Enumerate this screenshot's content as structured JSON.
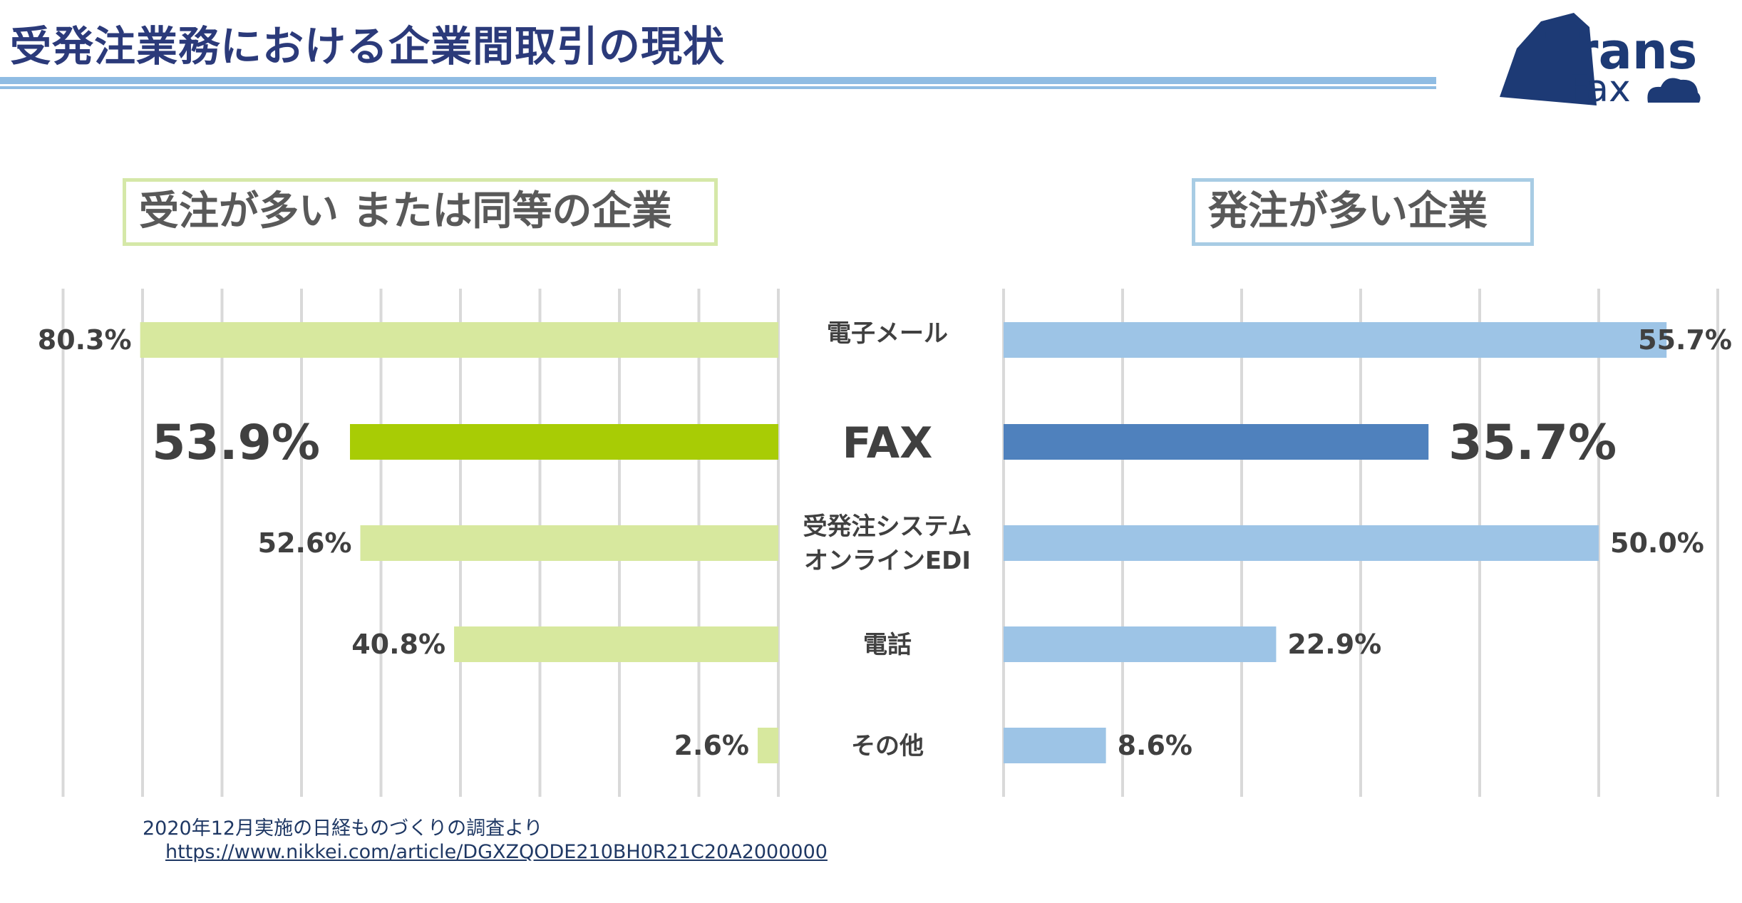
{
  "title": "受発注業務における企業間取引の現状",
  "logo": {
    "line1": "Trans",
    "line2": "Fax"
  },
  "panels": {
    "left_title": "受注が多い または同等の企業",
    "right_title": "発注が多い企業"
  },
  "chart_data": [
    {
      "type": "bar",
      "orientation": "horizontal",
      "direction": "right-to-left",
      "title": "受注が多い または同等の企業",
      "categories": [
        "電子メール",
        "FAX",
        "受発注システム オンラインEDI",
        "電話",
        "その他"
      ],
      "values": [
        80.3,
        53.9,
        52.6,
        40.8,
        2.6
      ],
      "labels": [
        "80.3%",
        "53.9%",
        "52.6%",
        "40.8%",
        "2.6%"
      ],
      "highlight_index": 1,
      "xlim": [
        0,
        90
      ],
      "grid": true,
      "colors": {
        "bar": "#d7e89e",
        "highlight": "#a8cc05"
      }
    },
    {
      "type": "bar",
      "orientation": "horizontal",
      "direction": "left-to-right",
      "title": "発注が多い企業",
      "categories": [
        "電子メール",
        "FAX",
        "受発注システム オンラインEDI",
        "電話",
        "その他"
      ],
      "values": [
        55.7,
        35.7,
        50.0,
        22.9,
        8.6
      ],
      "labels": [
        "55.7%",
        "35.7%",
        "50.0%",
        "22.9%",
        "8.6%"
      ],
      "highlight_index": 1,
      "xlim": [
        0,
        60
      ],
      "grid": true,
      "colors": {
        "bar": "#9dc4e6",
        "highlight": "#4f81bd"
      }
    }
  ],
  "category_labels": [
    {
      "lines": [
        "電子メール"
      ]
    },
    {
      "lines": [
        "FAX"
      ]
    },
    {
      "lines": [
        "受発注システム",
        "オンラインEDI"
      ]
    },
    {
      "lines": [
        "電話"
      ]
    },
    {
      "lines": [
        "その他"
      ]
    }
  ],
  "source": {
    "text": "2020年12月実施の日経ものづくりの調査より",
    "url": "https://www.nikkei.com/article/DGXZQODE210BH0R21C20A2000000"
  }
}
